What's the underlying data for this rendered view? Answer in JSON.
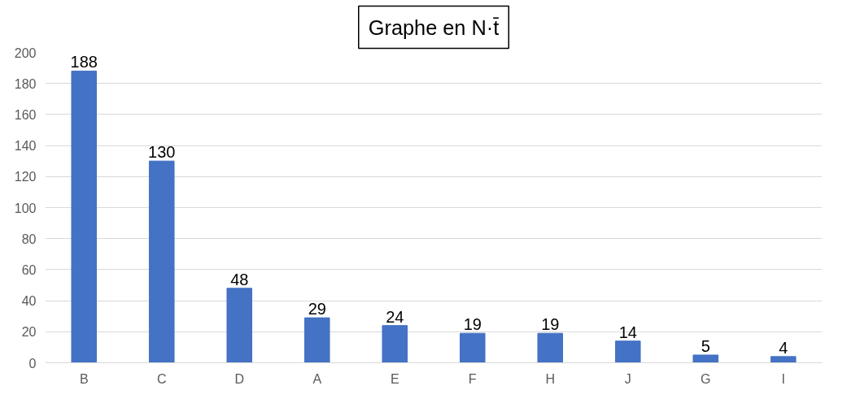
{
  "chart_data": {
    "type": "bar",
    "title": "Graphe en N·t̄",
    "categories": [
      "B",
      "C",
      "D",
      "A",
      "E",
      "F",
      "H",
      "J",
      "G",
      "I"
    ],
    "values": [
      188,
      130,
      48,
      29,
      24,
      19,
      19,
      14,
      5,
      4
    ],
    "color": "#4472c4",
    "ylim": [
      0,
      200
    ],
    "yticks": [
      0,
      20,
      40,
      60,
      80,
      100,
      120,
      140,
      160,
      180,
      200
    ],
    "grid": "y",
    "data_labels": true
  }
}
